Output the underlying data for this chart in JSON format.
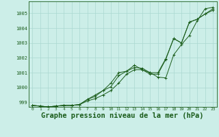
{
  "title": "Graphe pression niveau de la mer (hPa)",
  "x_labels": [
    "0",
    "1",
    "2",
    "3",
    "4",
    "5",
    "6",
    "7",
    "8",
    "9",
    "10",
    "11",
    "12",
    "13",
    "14",
    "15",
    "16",
    "17",
    "18",
    "19",
    "20",
    "21",
    "22",
    "23"
  ],
  "ylim": [
    998.7,
    1005.8
  ],
  "xlim": [
    -0.5,
    23.5
  ],
  "yticks": [
    999,
    1000,
    1001,
    1002,
    1003,
    1004,
    1005
  ],
  "line1": [
    998.8,
    998.75,
    998.7,
    998.75,
    998.8,
    998.8,
    998.85,
    999.1,
    999.25,
    999.5,
    999.8,
    1000.3,
    1000.9,
    1001.2,
    1001.2,
    1000.9,
    1000.9,
    1001.9,
    1003.3,
    1003.0,
    1004.4,
    1004.6,
    1004.95,
    1005.2
  ],
  "line2": [
    998.8,
    998.75,
    998.7,
    998.75,
    998.8,
    998.8,
    998.85,
    999.2,
    999.4,
    999.8,
    1000.3,
    1001.0,
    1001.1,
    1001.5,
    1001.2,
    1001.0,
    1000.7,
    1000.65,
    1002.2,
    1002.9,
    1003.5,
    1004.5,
    1005.3,
    1005.4
  ],
  "line3": [
    998.8,
    998.75,
    998.7,
    998.75,
    998.8,
    998.8,
    998.85,
    999.2,
    999.5,
    999.8,
    1000.05,
    1000.8,
    1001.1,
    1001.35,
    1001.3,
    1001.0,
    1001.0,
    1001.95,
    1003.3,
    1003.0,
    1004.4,
    1004.6,
    1004.95,
    1005.3
  ],
  "line_color": "#1a5c1a",
  "bg_color": "#cceee8",
  "grid_color": "#aad8d0",
  "title_color": "#1a5c1a",
  "title_fontsize": 7.5,
  "marker": "+"
}
